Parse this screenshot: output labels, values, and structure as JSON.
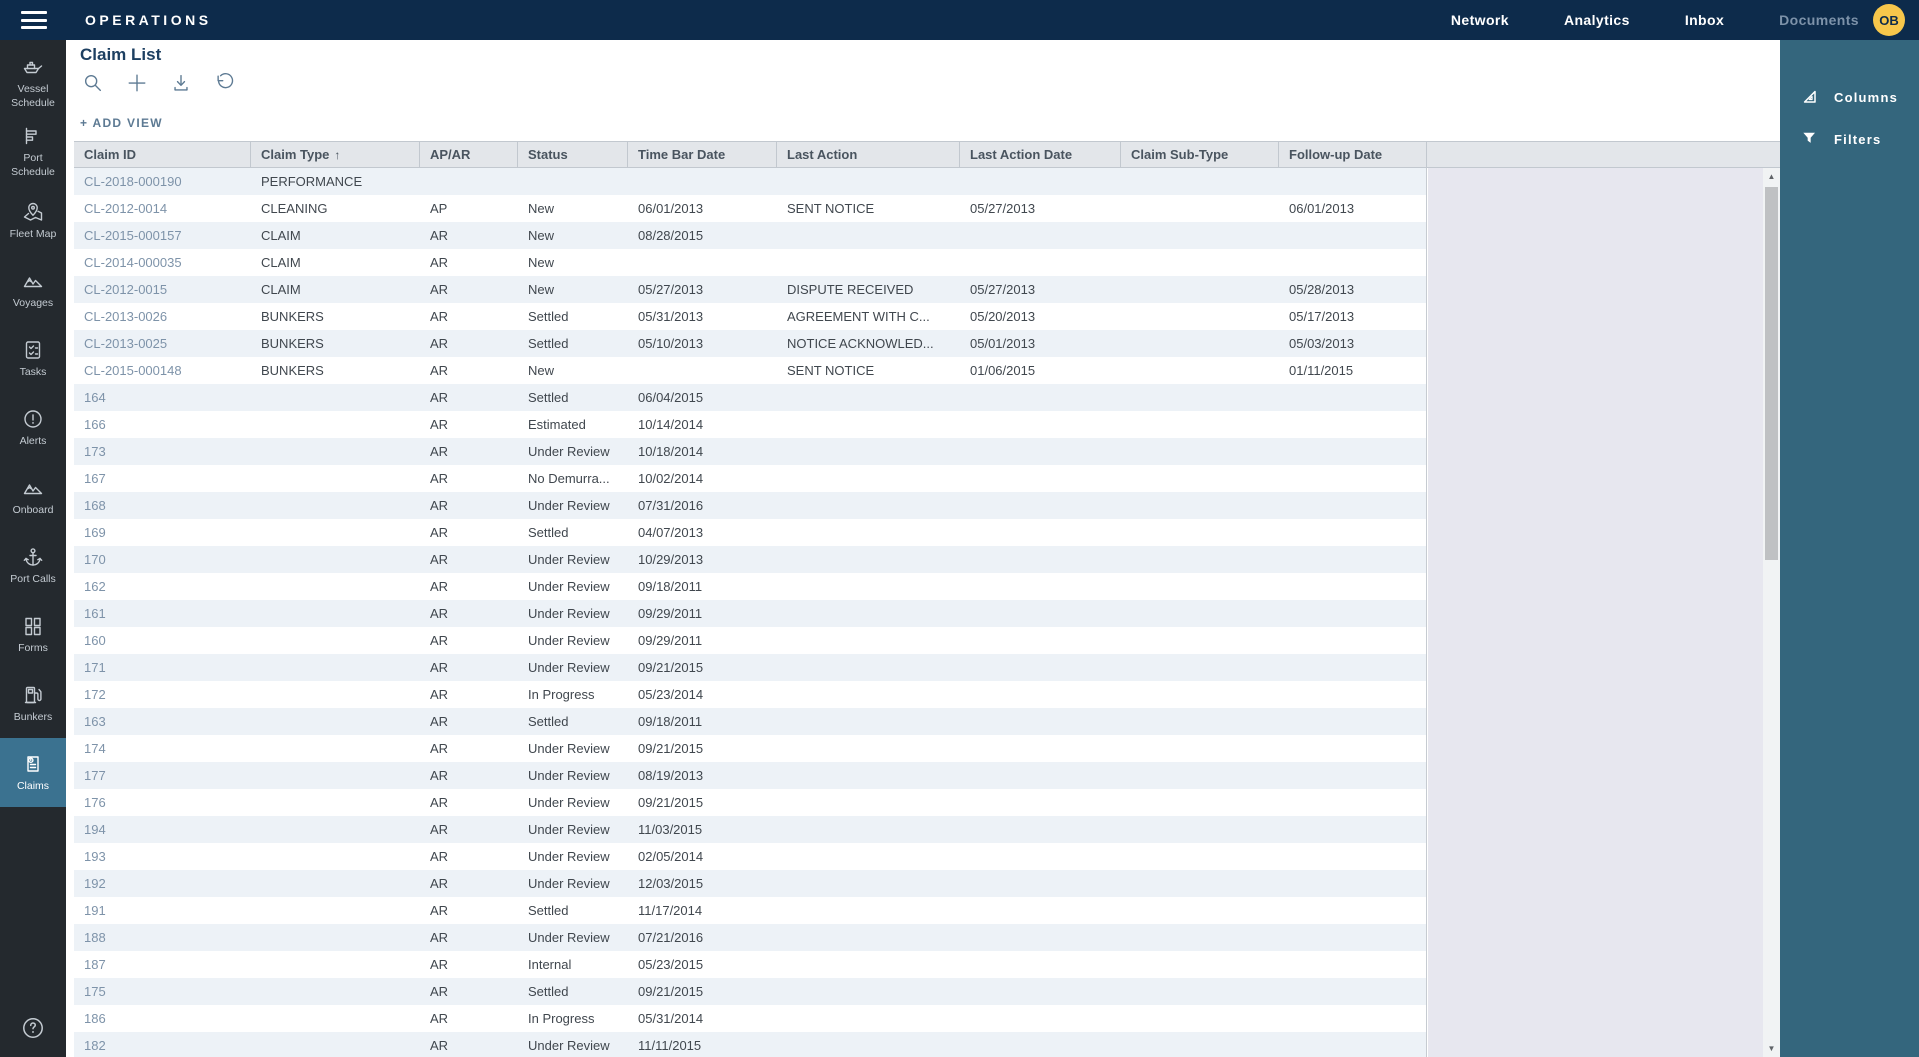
{
  "topbar": {
    "title": "OPERATIONS",
    "nav": [
      {
        "label": "Network",
        "muted": false
      },
      {
        "label": "Analytics",
        "muted": false
      },
      {
        "label": "Inbox",
        "muted": false
      },
      {
        "label": "Documents",
        "muted": true
      }
    ],
    "avatar": "OB"
  },
  "sidebar": {
    "items": [
      {
        "label": "Vessel Schedule",
        "icon": "ship-icon",
        "active": false
      },
      {
        "label": "Port Schedule",
        "icon": "gantt-icon",
        "active": false
      },
      {
        "label": "Fleet Map",
        "icon": "map-pin-icon",
        "active": false
      },
      {
        "label": "Voyages",
        "icon": "mountains-icon",
        "active": false
      },
      {
        "label": "Tasks",
        "icon": "checklist-icon",
        "active": false
      },
      {
        "label": "Alerts",
        "icon": "alert-circle-icon",
        "active": false
      },
      {
        "label": "Onboard",
        "icon": "mountains-icon",
        "active": false
      },
      {
        "label": "Port Calls",
        "icon": "anchor-icon",
        "active": false
      },
      {
        "label": "Forms",
        "icon": "forms-grid-icon",
        "active": false
      },
      {
        "label": "Bunkers",
        "icon": "fuel-pump-icon",
        "active": false
      },
      {
        "label": "Claims",
        "icon": "claim-document-icon",
        "active": true
      }
    ]
  },
  "page": {
    "title": "Claim List",
    "add_view_label": "+ ADD VIEW",
    "toolbar": [
      {
        "name": "search",
        "icon": "search-icon"
      },
      {
        "name": "add",
        "icon": "plus-icon"
      },
      {
        "name": "export",
        "icon": "download-icon"
      },
      {
        "name": "reset",
        "icon": "reset-icon"
      }
    ]
  },
  "panel": {
    "items": [
      {
        "label": "Columns",
        "icon": "columns-icon"
      },
      {
        "label": "Filters",
        "icon": "filter-icon"
      }
    ]
  },
  "table": {
    "columns": [
      {
        "label": "Claim ID",
        "sort": ""
      },
      {
        "label": "Claim Type",
        "sort": "asc"
      },
      {
        "label": "AP/AR",
        "sort": ""
      },
      {
        "label": "Status",
        "sort": ""
      },
      {
        "label": "Time Bar Date",
        "sort": ""
      },
      {
        "label": "Last Action",
        "sort": ""
      },
      {
        "label": "Last Action Date",
        "sort": ""
      },
      {
        "label": "Claim Sub-Type",
        "sort": ""
      },
      {
        "label": "Follow-up Date",
        "sort": ""
      }
    ],
    "rows": [
      [
        "CL-2018-000190",
        "PERFORMANCE",
        "",
        "",
        "",
        "",
        "",
        "",
        ""
      ],
      [
        "CL-2012-0014",
        "CLEANING",
        "AP",
        "New",
        "06/01/2013",
        "SENT NOTICE",
        "05/27/2013",
        "",
        "06/01/2013"
      ],
      [
        "CL-2015-000157",
        "CLAIM",
        "AR",
        "New",
        "08/28/2015",
        "",
        "",
        "",
        ""
      ],
      [
        "CL-2014-000035",
        "CLAIM",
        "AR",
        "New",
        "",
        "",
        "",
        "",
        ""
      ],
      [
        "CL-2012-0015",
        "CLAIM",
        "AR",
        "New",
        "05/27/2013",
        "DISPUTE RECEIVED",
        "05/27/2013",
        "",
        "05/28/2013"
      ],
      [
        "CL-2013-0026",
        "BUNKERS",
        "AR",
        "Settled",
        "05/31/2013",
        "AGREEMENT WITH C...",
        "05/20/2013",
        "",
        "05/17/2013"
      ],
      [
        "CL-2013-0025",
        "BUNKERS",
        "AR",
        "Settled",
        "05/10/2013",
        "NOTICE ACKNOWLED...",
        "05/01/2013",
        "",
        "05/03/2013"
      ],
      [
        "CL-2015-000148",
        "BUNKERS",
        "AR",
        "New",
        "",
        "SENT NOTICE",
        "01/06/2015",
        "",
        "01/11/2015"
      ],
      [
        "164",
        "",
        "AR",
        "Settled",
        "06/04/2015",
        "",
        "",
        "",
        ""
      ],
      [
        "166",
        "",
        "AR",
        "Estimated",
        "10/14/2014",
        "",
        "",
        "",
        ""
      ],
      [
        "173",
        "",
        "AR",
        "Under Review",
        "10/18/2014",
        "",
        "",
        "",
        ""
      ],
      [
        "167",
        "",
        "AR",
        "No Demurra...",
        "10/02/2014",
        "",
        "",
        "",
        ""
      ],
      [
        "168",
        "",
        "AR",
        "Under Review",
        "07/31/2016",
        "",
        "",
        "",
        ""
      ],
      [
        "169",
        "",
        "AR",
        "Settled",
        "04/07/2013",
        "",
        "",
        "",
        ""
      ],
      [
        "170",
        "",
        "AR",
        "Under Review",
        "10/29/2013",
        "",
        "",
        "",
        ""
      ],
      [
        "162",
        "",
        "AR",
        "Under Review",
        "09/18/2011",
        "",
        "",
        "",
        ""
      ],
      [
        "161",
        "",
        "AR",
        "Under Review",
        "09/29/2011",
        "",
        "",
        "",
        ""
      ],
      [
        "160",
        "",
        "AR",
        "Under Review",
        "09/29/2011",
        "",
        "",
        "",
        ""
      ],
      [
        "171",
        "",
        "AR",
        "Under Review",
        "09/21/2015",
        "",
        "",
        "",
        ""
      ],
      [
        "172",
        "",
        "AR",
        "In Progress",
        "05/23/2014",
        "",
        "",
        "",
        ""
      ],
      [
        "163",
        "",
        "AR",
        "Settled",
        "09/18/2011",
        "",
        "",
        "",
        ""
      ],
      [
        "174",
        "",
        "AR",
        "Under Review",
        "09/21/2015",
        "",
        "",
        "",
        ""
      ],
      [
        "177",
        "",
        "AR",
        "Under Review",
        "08/19/2013",
        "",
        "",
        "",
        ""
      ],
      [
        "176",
        "",
        "AR",
        "Under Review",
        "09/21/2015",
        "",
        "",
        "",
        ""
      ],
      [
        "194",
        "",
        "AR",
        "Under Review",
        "11/03/2015",
        "",
        "",
        "",
        ""
      ],
      [
        "193",
        "",
        "AR",
        "Under Review",
        "02/05/2014",
        "",
        "",
        "",
        ""
      ],
      [
        "192",
        "",
        "AR",
        "Under Review",
        "12/03/2015",
        "",
        "",
        "",
        ""
      ],
      [
        "191",
        "",
        "AR",
        "Settled",
        "11/17/2014",
        "",
        "",
        "",
        ""
      ],
      [
        "188",
        "",
        "AR",
        "Under Review",
        "07/21/2016",
        "",
        "",
        "",
        ""
      ],
      [
        "187",
        "",
        "AR",
        "Internal",
        "05/23/2015",
        "",
        "",
        "",
        ""
      ],
      [
        "175",
        "",
        "AR",
        "Settled",
        "09/21/2015",
        "",
        "",
        "",
        ""
      ],
      [
        "186",
        "",
        "AR",
        "In Progress",
        "05/31/2014",
        "",
        "",
        "",
        ""
      ],
      [
        "182",
        "",
        "AR",
        "Under Review",
        "11/11/2015",
        "",
        "",
        "",
        ""
      ]
    ]
  },
  "colors": {
    "topbar": "#0d2b4b",
    "sidebar": "#24292e",
    "panel_teal": "#34667d",
    "active_item": "#3b7290",
    "avatar_yellow": "#f7c74b",
    "title_navy": "#1d3f61",
    "link_blue": "#7e93a9",
    "row_stripe": "#edf2f7"
  }
}
